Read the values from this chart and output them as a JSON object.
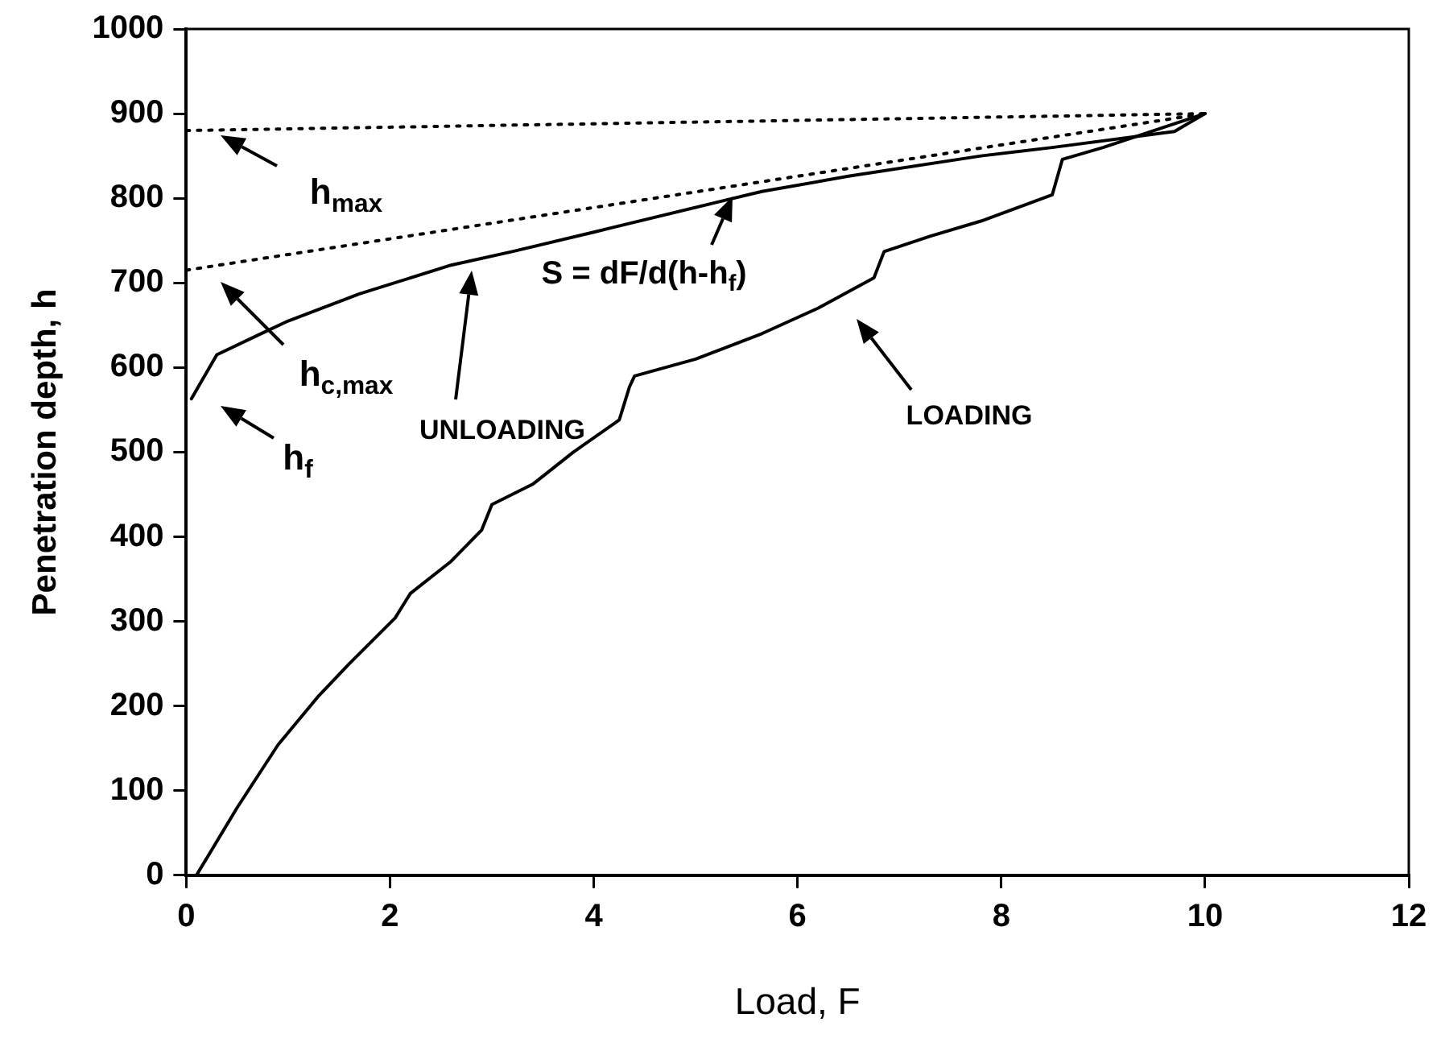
{
  "chart_data": {
    "type": "line",
    "xlabel": "Load, F",
    "ylabel": "Penetration depth, h",
    "xlim": [
      0,
      12
    ],
    "xticks": [
      0,
      2,
      4,
      6,
      8,
      10,
      12
    ],
    "ylim": [
      0,
      1000
    ],
    "yticks": [
      0,
      100,
      200,
      300,
      400,
      500,
      600,
      700,
      800,
      900,
      1000
    ],
    "grid": false,
    "legend": false,
    "marker": "none",
    "series": [
      {
        "color": "#000000",
        "line_style": "solid",
        "x": [
          0.1,
          0.5,
          0.9,
          1.3,
          1.6,
          2.05,
          2.2,
          2.6,
          2.9,
          3.0,
          3.4,
          3.8,
          4.25,
          4.35,
          4.4,
          5.0,
          5.65,
          6.2,
          6.75,
          6.85,
          7.3,
          7.8,
          8.5,
          8.6,
          9.0,
          9.7,
          10
        ],
        "values": [
          0,
          80,
          154,
          212,
          250,
          304,
          333,
          371,
          408,
          438,
          462,
          500,
          538,
          577,
          590,
          610,
          640,
          670,
          706,
          737,
          755,
          773,
          804,
          846,
          860,
          888,
          900
        ]
      },
      {
        "color": "#000000",
        "line_style": "solid",
        "x": [
          10,
          9.7,
          8.5,
          7.8,
          6.5,
          5.65,
          5.2,
          4.0,
          3.2,
          2.6,
          1.7,
          1.0,
          0.7,
          0.3,
          0.05
        ],
        "values": [
          900,
          879,
          860,
          850,
          826,
          808,
          795,
          760,
          737,
          721,
          687,
          655,
          638,
          615,
          563
        ]
      },
      {
        "color": "#000000",
        "line_style": "dotted",
        "x": [
          0,
          10
        ],
        "values": [
          880,
          900
        ]
      },
      {
        "color": "#000000",
        "line_style": "dotted",
        "x": [
          0,
          10
        ],
        "values": [
          715,
          900
        ]
      }
    ],
    "annotations": [
      "h$_{max}$",
      "h$_{c,max}$",
      "h$_{f}$",
      "UNLOADING",
      "LOADING",
      "S = dF/d(h-h$_{f}$)"
    ]
  }
}
